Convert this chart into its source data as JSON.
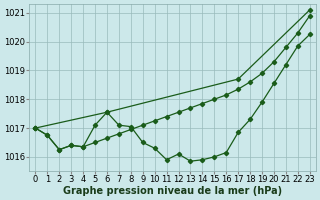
{
  "xlabel": "Graphe pression niveau de la mer (hPa)",
  "background_color": "#cce8ea",
  "grid_color": "#99bbbb",
  "line_color": "#1a5c1a",
  "x_ticks": [
    0,
    1,
    2,
    3,
    4,
    5,
    6,
    7,
    8,
    9,
    10,
    11,
    12,
    13,
    14,
    15,
    16,
    17,
    18,
    19,
    20,
    21,
    22,
    23
  ],
  "ylim": [
    1015.5,
    1021.3
  ],
  "yticks": [
    1016,
    1017,
    1018,
    1019,
    1020,
    1021
  ],
  "line1_x": [
    0,
    1,
    2,
    3,
    4,
    5,
    6,
    7,
    8,
    9,
    10,
    11,
    12,
    13,
    14,
    15,
    16,
    17,
    18,
    19,
    20,
    21,
    22,
    23
  ],
  "line1_y": [
    1017.0,
    1016.75,
    1016.25,
    1016.4,
    1016.35,
    1016.5,
    1016.65,
    1016.8,
    1016.95,
    1017.1,
    1017.25,
    1017.4,
    1017.55,
    1017.7,
    1017.85,
    1018.0,
    1018.15,
    1018.35,
    1018.6,
    1018.9,
    1019.3,
    1019.8,
    1020.3,
    1020.9
  ],
  "line2_x": [
    0,
    1,
    2,
    3,
    4,
    5,
    6,
    7,
    8,
    9,
    10,
    11,
    12,
    13,
    14,
    15,
    16,
    17,
    18,
    19,
    20,
    21,
    22,
    23
  ],
  "line2_y": [
    1017.0,
    1016.75,
    1016.25,
    1016.4,
    1016.35,
    1017.1,
    1017.55,
    1017.1,
    1017.05,
    1016.5,
    1016.3,
    1015.9,
    1016.1,
    1015.85,
    1015.9,
    1016.0,
    1016.15,
    1016.85,
    1017.3,
    1017.9,
    1018.55,
    1019.2,
    1019.85,
    1020.25
  ],
  "line3_x": [
    0,
    6,
    17,
    23
  ],
  "line3_y": [
    1017.0,
    1017.55,
    1018.7,
    1021.1
  ],
  "marker": "D",
  "marker_size": 2.2,
  "line_width": 0.9,
  "xlabel_fontsize": 7,
  "tick_fontsize": 6
}
